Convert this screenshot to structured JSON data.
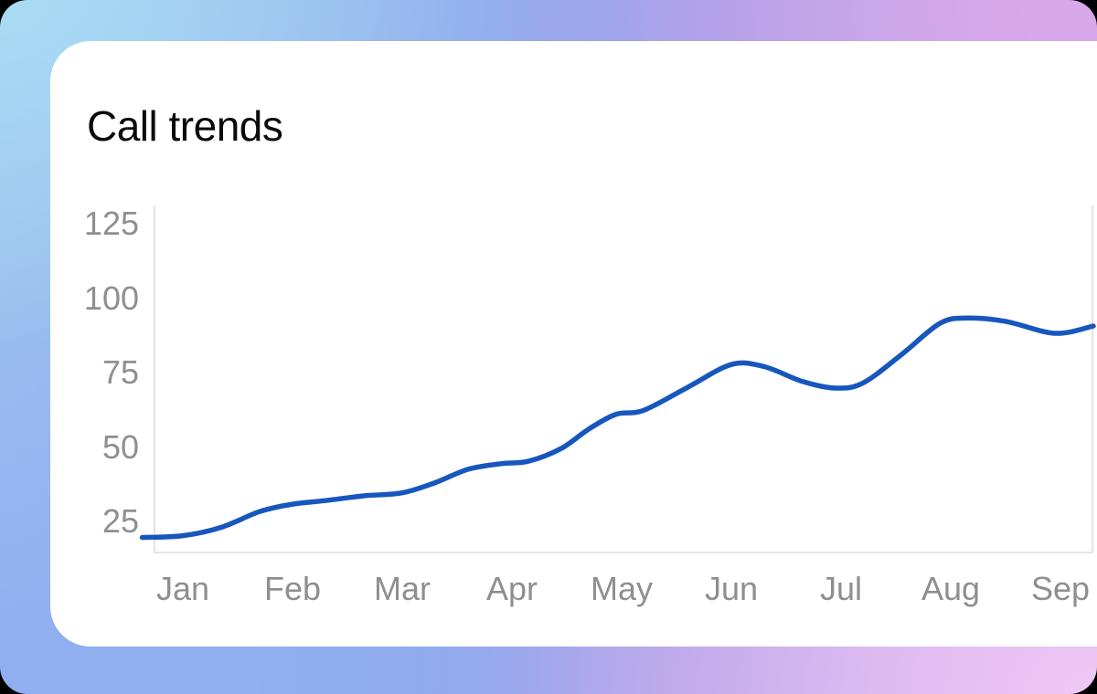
{
  "card": {
    "title": "Call trends"
  },
  "chart_data": {
    "type": "line",
    "title": "Call trends",
    "categories": [
      "Jan",
      "Feb",
      "Mar",
      "Apr",
      "May",
      "Jun",
      "Jul",
      "Aug",
      "Sep"
    ],
    "values": [
      20,
      31,
      35,
      45,
      62,
      78,
      70,
      93,
      88
    ],
    "xlabel": "",
    "ylabel": "",
    "yticks": [
      125,
      100,
      75,
      50,
      25
    ],
    "ylim": [
      15,
      131
    ],
    "grid": false,
    "legend": false,
    "smooth": true,
    "line_color": "#1757bd",
    "axis_color": "#dcdce0",
    "label_color": "#8e8e93",
    "curve_points": [
      [
        -0.37,
        19.6
      ],
      [
        0.0,
        20.2
      ],
      [
        0.35,
        23.0
      ],
      [
        0.7,
        28.3
      ],
      [
        1.0,
        30.8
      ],
      [
        1.3,
        32.0
      ],
      [
        1.65,
        33.6
      ],
      [
        2.0,
        34.6
      ],
      [
        2.3,
        38.0
      ],
      [
        2.6,
        42.5
      ],
      [
        2.9,
        44.4
      ],
      [
        3.15,
        45.2
      ],
      [
        3.45,
        49.5
      ],
      [
        3.7,
        56.0
      ],
      [
        3.95,
        61.0
      ],
      [
        4.2,
        62.3
      ],
      [
        4.6,
        70.0
      ],
      [
        5.0,
        77.7
      ],
      [
        5.3,
        77.0
      ],
      [
        5.65,
        72.0
      ],
      [
        5.95,
        69.8
      ],
      [
        6.2,
        71.5
      ],
      [
        6.55,
        81.0
      ],
      [
        6.9,
        91.5
      ],
      [
        7.15,
        93.3
      ],
      [
        7.5,
        92.2
      ],
      [
        7.95,
        88.2
      ],
      [
        8.3,
        90.6
      ]
    ]
  }
}
